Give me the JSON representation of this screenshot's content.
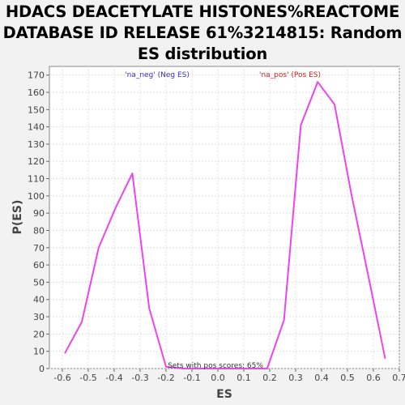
{
  "chart_data": {
    "type": "line",
    "title": [
      "HDACS DEACETYLATE HISTONES%REACTOME",
      "DATABASE ID RELEASE 61%3214815: Random",
      "ES distribution"
    ],
    "xlabel": "ES",
    "ylabel": "P(ES)",
    "xlim": [
      -0.65,
      0.7
    ],
    "ylim": [
      0,
      175
    ],
    "x_ticks": [
      "-0.6",
      "-0.5",
      "-0.4",
      "-0.3",
      "-0.2",
      "-0.1",
      "0.0",
      "0.1",
      "0.2",
      "0.3",
      "0.4",
      "0.5",
      "0.6",
      "0.7"
    ],
    "y_ticks": [
      "0",
      "10",
      "20",
      "30",
      "40",
      "50",
      "60",
      "70",
      "80",
      "90",
      "100",
      "110",
      "120",
      "130",
      "140",
      "150",
      "160",
      "170"
    ],
    "grid": true,
    "legend": [
      {
        "label": "'na_neg' (Neg ES)",
        "color": "#3333cc"
      },
      {
        "label": "'na_pos' (Pos ES)",
        "color": "#cc2222"
      }
    ],
    "annotation": "Sets with pos scores: 65%",
    "series_color": "#ee44ee",
    "x": [
      -0.59,
      -0.525,
      -0.46,
      -0.395,
      -0.33,
      -0.265,
      -0.2,
      -0.135,
      -0.07,
      -0.005,
      0.06,
      0.125,
      0.19,
      0.255,
      0.32,
      0.385,
      0.45,
      0.515,
      0.58,
      0.645
    ],
    "y": [
      9,
      27,
      70,
      93,
      113,
      35,
      1,
      0,
      0,
      0,
      0,
      0,
      0,
      28,
      141,
      166,
      153,
      101,
      54,
      6
    ]
  }
}
